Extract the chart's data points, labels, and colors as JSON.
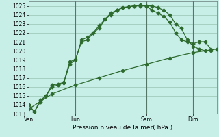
{
  "background_color": "#c8eee8",
  "grid_color": "#a0ccbb",
  "line_color": "#2d6a2d",
  "title": "Pression niveau de la mer( hPa )",
  "ylim": [
    1013,
    1025.5
  ],
  "yticks": [
    1013,
    1014,
    1015,
    1016,
    1017,
    1018,
    1019,
    1020,
    1021,
    1022,
    1023,
    1024,
    1025
  ],
  "xtick_labels": [
    "Ven",
    "Lun",
    "Sam",
    "Dim"
  ],
  "xtick_positions": [
    0,
    4,
    10,
    14
  ],
  "xlim": [
    0,
    16
  ],
  "vline_positions": [
    4,
    10,
    14
  ],
  "line1_x": [
    0,
    0.5,
    1,
    1.5,
    2,
    2.5,
    3,
    3.5,
    4,
    4.5,
    5,
    5.5,
    6,
    6.5,
    7,
    7.5,
    8,
    8.5,
    9,
    9.5,
    10,
    10.5,
    11,
    11.5,
    12,
    12.5,
    13,
    13.5,
    14,
    14.5,
    15,
    15.5
  ],
  "line1_y": [
    1014.0,
    1013.2,
    1014.5,
    1015.0,
    1016.2,
    1016.3,
    1016.5,
    1018.8,
    1019.0,
    1021.2,
    1021.5,
    1022.0,
    1022.8,
    1023.5,
    1024.0,
    1024.5,
    1024.8,
    1024.9,
    1025.0,
    1025.1,
    1025.0,
    1025.0,
    1024.8,
    1024.5,
    1024.0,
    1023.0,
    1022.5,
    1021.2,
    1020.5,
    1020.2,
    1020.0,
    1020.0
  ],
  "line2_x": [
    0,
    0.5,
    1,
    1.5,
    2,
    2.5,
    3,
    3.5,
    4,
    4.5,
    5,
    5.5,
    6,
    6.5,
    7,
    7.5,
    8,
    8.5,
    9,
    9.5,
    10,
    10.5,
    11,
    11.5,
    12,
    12.5,
    13,
    13.5,
    14,
    14.5,
    15,
    15.5
  ],
  "line2_y": [
    1014.0,
    1013.2,
    1014.3,
    1015.0,
    1016.0,
    1016.2,
    1016.4,
    1018.5,
    1019.0,
    1021.0,
    1021.2,
    1022.0,
    1022.5,
    1023.5,
    1024.2,
    1024.5,
    1024.8,
    1024.9,
    1025.0,
    1025.0,
    1025.0,
    1024.5,
    1024.2,
    1023.8,
    1023.2,
    1022.0,
    1021.2,
    1021.0,
    1020.8,
    1021.0,
    1021.0,
    1020.2
  ],
  "line3_x": [
    0,
    2,
    4,
    6,
    8,
    10,
    12,
    14,
    16
  ],
  "line3_y": [
    1013.5,
    1015.2,
    1016.2,
    1017.0,
    1017.8,
    1018.5,
    1019.2,
    1019.8,
    1020.2
  ],
  "marker_size": 2.5
}
